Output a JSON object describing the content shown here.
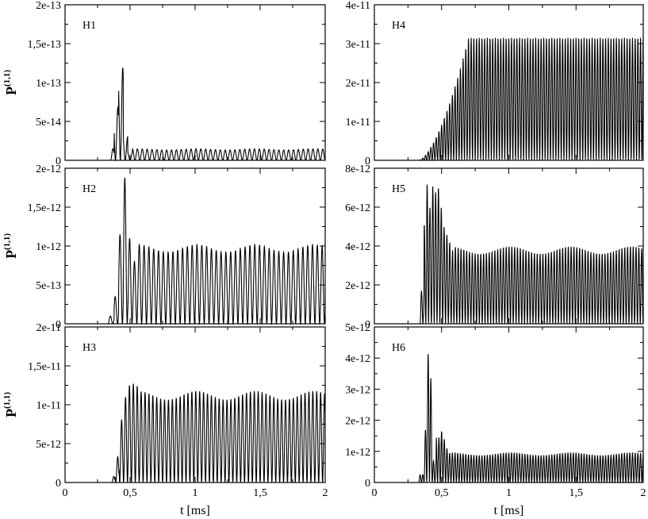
{
  "chart_data": [
    {
      "type": "line",
      "label": "H1",
      "ylabel": "P",
      "ylabel_superscript": "(1,1)",
      "xlabel": "",
      "xlim": [
        0,
        2
      ],
      "ylim": [
        0,
        2e-13
      ],
      "xticks": [
        "0",
        "0,5",
        "1",
        "1,5",
        "2"
      ],
      "yticks": [
        "0",
        "5e-14",
        "1e-13",
        "1,5e-13",
        "2e-13"
      ],
      "ytick_values": [
        0,
        5e-14,
        1e-13,
        1.5e-13,
        2e-13
      ],
      "signal": {
        "onset_ms": 0.35,
        "period_ms": 0.0375,
        "burst_peaks": [
          {
            "t": 0.36,
            "v": 1.5e-14
          },
          {
            "t": 0.395,
            "v": 6.8e-14
          },
          {
            "t": 0.43,
            "v": 1.19e-13
          },
          {
            "t": 0.465,
            "v": 3e-14
          },
          {
            "t": 0.5,
            "v": 1e-14
          }
        ],
        "steady_value": 1.4e-14
      }
    },
    {
      "type": "line",
      "label": "H4",
      "ylabel": "",
      "xlabel": "",
      "xlim": [
        0,
        2
      ],
      "ylim": [
        0,
        4e-11
      ],
      "xticks": [
        "0",
        "0,5",
        "1",
        "1,5",
        "2"
      ],
      "yticks": [
        "0",
        "1e-11",
        "2e-11",
        "3e-11",
        "4e-11"
      ],
      "ytick_values": [
        0,
        1e-11,
        2e-11,
        3e-11,
        4e-11
      ],
      "signal": {
        "onset_ms": 0.33,
        "period_ms": 0.02,
        "ramp_end_ms": 0.7,
        "steady_value": 3.15e-11
      }
    },
    {
      "type": "line",
      "label": "H2",
      "ylabel": "P",
      "ylabel_superscript": "(1,1)",
      "xlabel": "",
      "xlim": [
        0,
        2
      ],
      "ylim": [
        0,
        2e-12
      ],
      "xticks": [
        "0",
        "0,5",
        "1",
        "1,5",
        "2"
      ],
      "yticks": [
        "0",
        "5e-13",
        "1e-12",
        "1,5e-12",
        "2e-12"
      ],
      "ytick_values": [
        0,
        5e-13,
        1e-12,
        1.5e-12,
        2e-12
      ],
      "signal": {
        "onset_ms": 0.33,
        "period_ms": 0.037,
        "burst_peaks": [
          {
            "t": 0.36,
            "v": 1e-13
          },
          {
            "t": 0.395,
            "v": 3.5e-13
          },
          {
            "t": 0.43,
            "v": 1.15e-12
          },
          {
            "t": 0.465,
            "v": 1.88e-12
          },
          {
            "t": 0.5,
            "v": 1.1e-12
          },
          {
            "t": 0.535,
            "v": 8e-13
          }
        ],
        "steady_value": 9.7e-13
      }
    },
    {
      "type": "line",
      "label": "H5",
      "ylabel": "",
      "xlabel": "",
      "xlim": [
        0,
        2
      ],
      "ylim": [
        0,
        8e-12
      ],
      "xticks": [
        "0",
        "0,5",
        "1",
        "1,5",
        "2"
      ],
      "yticks": [
        "0",
        "2e-12",
        "4e-12",
        "6e-12",
        "8e-12"
      ],
      "ytick_values": [
        0,
        2e-12,
        4e-12,
        6e-12,
        8e-12
      ],
      "signal": {
        "onset_ms": 0.34,
        "period_ms": 0.021,
        "burst_peaks": [
          {
            "t": 0.36,
            "v": 1.7e-12
          },
          {
            "t": 0.38,
            "v": 5.1e-12
          },
          {
            "t": 0.4,
            "v": 7.2e-12
          },
          {
            "t": 0.42,
            "v": 6e-12
          },
          {
            "t": 0.44,
            "v": 7.1e-12
          },
          {
            "t": 0.46,
            "v": 6.8e-12
          },
          {
            "t": 0.48,
            "v": 7e-12
          },
          {
            "t": 0.5,
            "v": 6e-12
          },
          {
            "t": 0.52,
            "v": 5e-12
          },
          {
            "t": 0.54,
            "v": 4.6e-12
          },
          {
            "t": 0.56,
            "v": 4.2e-12
          },
          {
            "t": 0.58,
            "v": 3.8e-12
          }
        ],
        "steady_value": 3.8e-12
      }
    },
    {
      "type": "line",
      "label": "H3",
      "ylabel": "P",
      "ylabel_superscript": "(1,1)",
      "xlabel": "t [ms]",
      "xlim": [
        0,
        2
      ],
      "ylim": [
        0,
        2e-11
      ],
      "xticks": [
        "0",
        "0,5",
        "1",
        "1,5",
        "2"
      ],
      "yticks": [
        "0",
        "5e-12",
        "1e-11",
        "1,5e-11",
        "2e-11"
      ],
      "ytick_values": [
        0,
        5e-12,
        1e-11,
        1.5e-11,
        2e-11
      ],
      "signal": {
        "onset_ms": 0.36,
        "period_ms": 0.03,
        "burst_peaks": [
          {
            "t": 0.37,
            "v": 8e-13
          },
          {
            "t": 0.4,
            "v": 3.3e-12
          },
          {
            "t": 0.43,
            "v": 8.1e-12
          },
          {
            "t": 0.46,
            "v": 1.1e-11
          },
          {
            "t": 0.49,
            "v": 1.25e-11
          },
          {
            "t": 0.52,
            "v": 1.27e-11
          },
          {
            "t": 0.55,
            "v": 1.24e-11
          },
          {
            "t": 0.58,
            "v": 1.17e-11
          }
        ],
        "steady_value": 1.12e-11
      }
    },
    {
      "type": "line",
      "label": "H6",
      "ylabel": "",
      "xlabel": "t [ms]",
      "xlim": [
        0,
        2
      ],
      "ylim": [
        0,
        5e-12
      ],
      "xticks": [
        "0",
        "0,5",
        "1",
        "1,5",
        "2"
      ],
      "yticks": [
        "0",
        "1e-12",
        "2e-12",
        "3e-12",
        "4e-12",
        "5e-12"
      ],
      "ytick_values": [
        0,
        1e-12,
        2e-12,
        3e-12,
        4e-12,
        5e-12
      ],
      "signal": {
        "onset_ms": 0.33,
        "period_ms": 0.02,
        "burst_peaks": [
          {
            "t": 0.36,
            "v": 2.5e-13
          },
          {
            "t": 0.38,
            "v": 1.7e-12
          },
          {
            "t": 0.4,
            "v": 4.15e-12
          },
          {
            "t": 0.42,
            "v": 3.35e-12
          },
          {
            "t": 0.44,
            "v": 7e-13
          },
          {
            "t": 0.48,
            "v": 1.45e-12
          },
          {
            "t": 0.5,
            "v": 1.65e-12
          },
          {
            "t": 0.52,
            "v": 1.4e-12
          },
          {
            "t": 0.54,
            "v": 1.1e-12
          },
          {
            "t": 0.56,
            "v": 9.5e-13
          }
        ],
        "steady_value": 9.2e-13
      }
    }
  ]
}
